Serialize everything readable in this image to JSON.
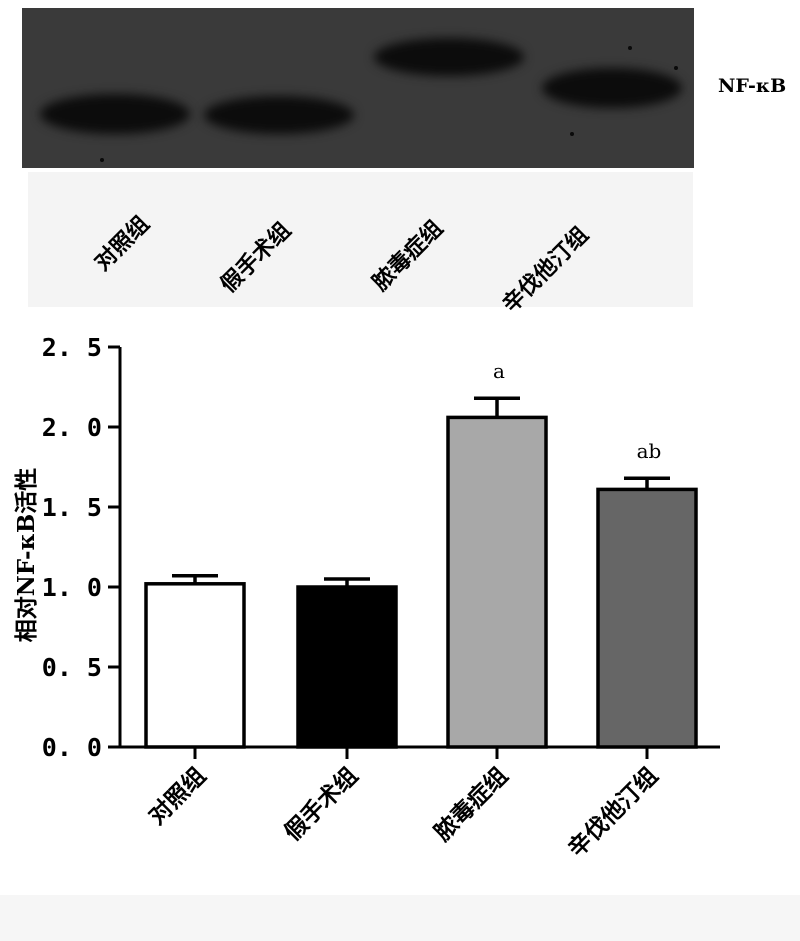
{
  "blot": {
    "protein_label": "NF-κB",
    "lanes": [
      "对照组",
      "假手术组",
      "脓毒症组",
      "辛伐他汀组"
    ]
  },
  "colors": {
    "bar_fills": [
      "#ffffff",
      "#000000",
      "#a8a8a8",
      "#666666"
    ],
    "bar_stroke": "#000000",
    "blot_background": "#3a3a3a"
  },
  "chart_data": {
    "type": "bar",
    "categories": [
      "对照组",
      "假手术组",
      "脓毒症组",
      "辛伐他汀组"
    ],
    "values": [
      1.02,
      1.0,
      2.06,
      1.61
    ],
    "errors": [
      0.05,
      0.05,
      0.12,
      0.07
    ],
    "annotations": [
      "",
      "",
      "a",
      "ab"
    ],
    "ylabel": "相对NF-κB活性",
    "ylim": [
      0,
      2.5
    ],
    "yticks": [
      "0. 0",
      "0. 5",
      "1. 0",
      "1. 5",
      "2. 0",
      "2. 5"
    ],
    "ytick_values": [
      0,
      0.5,
      1.0,
      1.5,
      2.0,
      2.5
    ],
    "grid": false
  }
}
